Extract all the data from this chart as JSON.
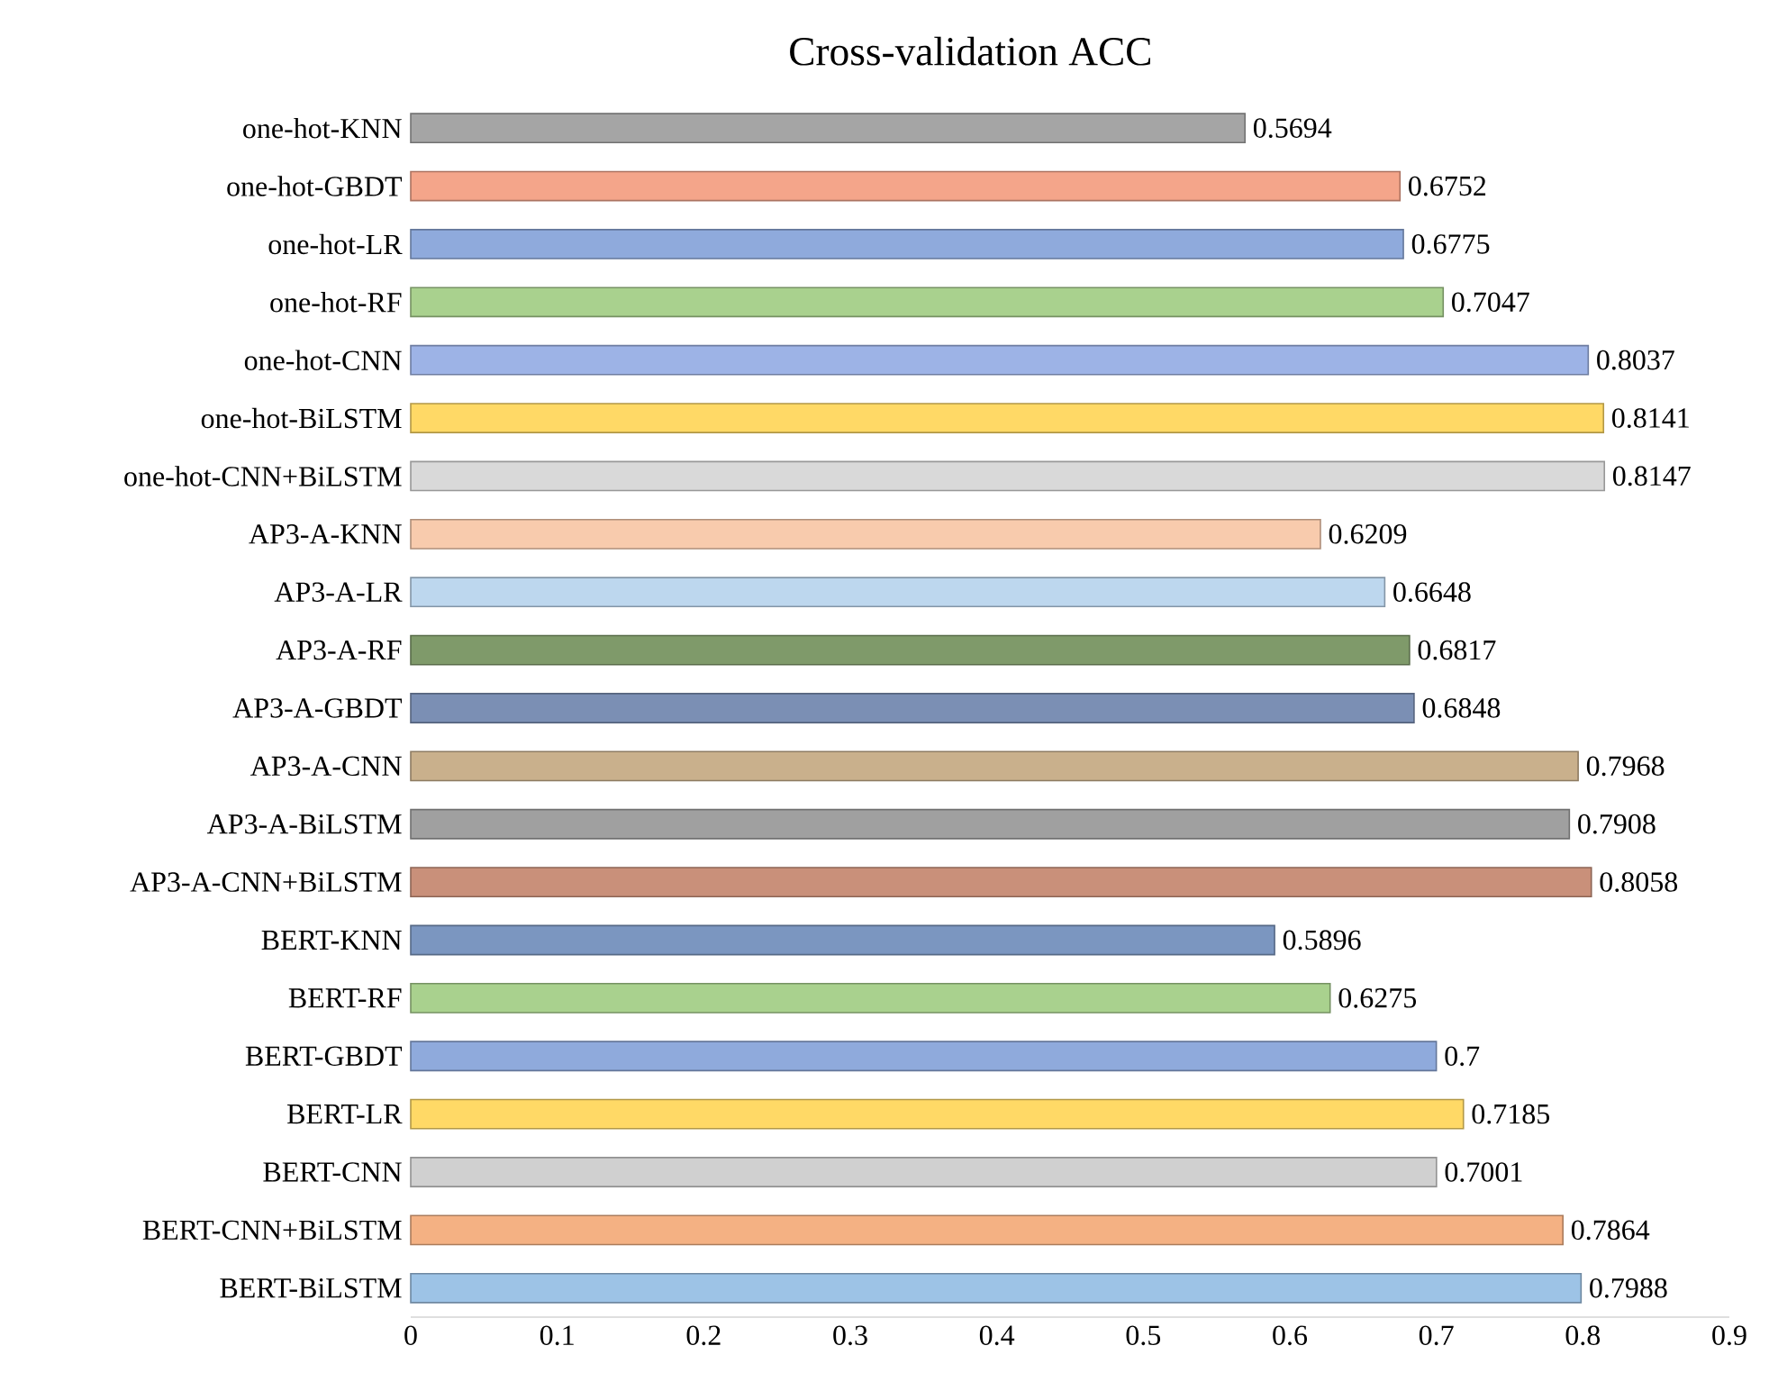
{
  "chart_data": {
    "type": "bar",
    "orientation": "horizontal",
    "title": "Cross-validation ACC",
    "categories": [
      "one-hot-KNN",
      "one-hot-GBDT",
      "one-hot-LR",
      "one-hot-RF",
      "one-hot-CNN",
      "one-hot-BiLSTM",
      "one-hot-CNN+BiLSTM",
      "AP3-A-KNN",
      "AP3-A-LR",
      "AP3-A-RF",
      "AP3-A-GBDT",
      "AP3-A-CNN",
      "AP3-A-BiLSTM",
      "AP3-A-CNN+BiLSTM",
      "BERT-KNN",
      "BERT-RF",
      "BERT-GBDT",
      "BERT-LR",
      "BERT-CNN",
      "BERT-CNN+BiLSTM",
      "BERT-BiLSTM"
    ],
    "values": [
      0.5694,
      0.6752,
      0.6775,
      0.7047,
      0.8037,
      0.8141,
      0.8147,
      0.6209,
      0.6648,
      0.6817,
      0.6848,
      0.7968,
      0.7908,
      0.8058,
      0.5896,
      0.6275,
      0.7,
      0.7185,
      0.7001,
      0.7864,
      0.7988
    ],
    "colors": [
      "#a5a5a5",
      "#f4a58a",
      "#8faadc",
      "#a9d18e",
      "#9db3e6",
      "#ffd966",
      "#d9d9d9",
      "#f8cbad",
      "#bdd7ee",
      "#7f9a6a",
      "#7b8fb4",
      "#c9b08c",
      "#a0a0a0",
      "#c9907a",
      "#7b96c0",
      "#a9d18e",
      "#8faadc",
      "#ffd966",
      "#d0d0d0",
      "#f4b183",
      "#9dc3e6"
    ],
    "xlim": [
      0,
      0.9
    ],
    "xticks": [
      0,
      0.1,
      0.2,
      0.3,
      0.4,
      0.5,
      0.6,
      0.7,
      0.8,
      0.9
    ],
    "data_labels": true
  }
}
